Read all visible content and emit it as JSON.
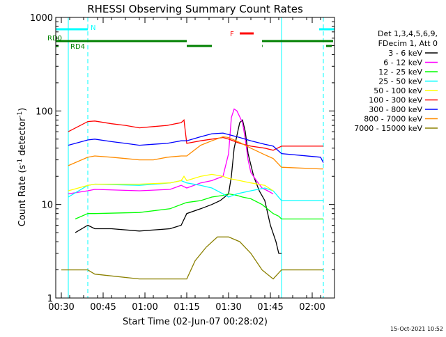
{
  "chart_data": {
    "type": "line",
    "title": "RHESSI Observing Summary Count Rates",
    "xlabel": "Start Time (02-Jun-07 00:28:02)",
    "ylabel_parts": [
      "Count Rate (s",
      "-1",
      " detector",
      "-1",
      ")"
    ],
    "x_unit": "minutes since 00:28:02",
    "xlim": [
      0,
      100
    ],
    "ylim": [
      1,
      1000
    ],
    "y_scale": "log",
    "x_ticks": [
      {
        "x": 2,
        "label": "00:30"
      },
      {
        "x": 17,
        "label": "00:45"
      },
      {
        "x": 32,
        "label": "01:00"
      },
      {
        "x": 47,
        "label": "01:15"
      },
      {
        "x": 62,
        "label": "01:30"
      },
      {
        "x": 77,
        "label": "01:45"
      },
      {
        "x": 92,
        "label": "02:00"
      }
    ],
    "y_ticks": [
      {
        "y": 1,
        "label": "1"
      },
      {
        "y": 10,
        "label": "10"
      },
      {
        "y": 100,
        "label": "100"
      },
      {
        "y": 1000,
        "label": "1000"
      }
    ],
    "legend": {
      "placement": "right",
      "header": [
        "Det 1,3,4,5,6,9,",
        "FDecim 1, Att 0"
      ]
    },
    "series": [
      {
        "name": "3 - 6 keV",
        "color": "#000000",
        "x": [
          7,
          11.5,
          14,
          20,
          30,
          41,
          45,
          47,
          52,
          56,
          59,
          62,
          63,
          64,
          66,
          67,
          68,
          69,
          71,
          73,
          75,
          77,
          79,
          80,
          81
        ],
        "y": [
          5,
          6,
          5.5,
          5.5,
          5.2,
          5.5,
          6,
          8,
          9,
          10,
          11,
          13,
          20,
          40,
          75,
          80,
          60,
          35,
          20,
          14,
          11,
          6,
          4,
          3,
          3
        ]
      },
      {
        "name": "6 - 12 keV",
        "color": "#ff00ff",
        "x": [
          4.5,
          11.5,
          14,
          30,
          41,
          45,
          47,
          52,
          56,
          60,
          62,
          63,
          64,
          65,
          67,
          68,
          69,
          70,
          72,
          74,
          76,
          78
        ],
        "y": [
          13,
          14,
          14.5,
          14,
          14.5,
          16,
          15,
          17,
          18,
          20,
          35,
          85,
          105,
          100,
          75,
          50,
          30,
          22,
          18,
          15,
          14,
          13
        ]
      },
      {
        "name": "12 - 25 keV",
        "color": "#00ff00",
        "x": [
          7,
          11.5,
          14,
          30,
          41,
          45,
          47,
          52,
          56,
          60,
          62,
          65,
          67,
          70,
          74,
          78,
          80,
          81,
          95,
          96
        ],
        "y": [
          7,
          8,
          8,
          8.2,
          9,
          10,
          10.5,
          11,
          12,
          12.5,
          13,
          12.5,
          12,
          11.5,
          10,
          8,
          7.5,
          7,
          7,
          7
        ]
      },
      {
        "name": "25 - 50 keV",
        "color": "#00ffff",
        "x": [
          4.5,
          11.5,
          14,
          30,
          41,
          45,
          47,
          52,
          56,
          60,
          62,
          65,
          70,
          75,
          78,
          81,
          95,
          96
        ],
        "y": [
          12,
          16,
          16.5,
          16,
          17,
          18,
          17,
          16,
          15,
          13,
          12,
          13,
          14,
          15,
          14,
          11,
          11,
          11
        ]
      },
      {
        "name": "50 - 100 keV",
        "color": "#ffff00",
        "x": [
          4.5,
          11.5,
          14,
          30,
          41,
          45,
          46,
          47,
          52,
          56,
          60,
          62,
          66,
          70,
          75,
          78
        ],
        "y": [
          14,
          16,
          16.5,
          16.5,
          17,
          18,
          20,
          18,
          20,
          21,
          20,
          19,
          18,
          17,
          16,
          14
        ]
      },
      {
        "name": "100 - 300 keV",
        "color": "#ff0000",
        "x": [
          4.5,
          11.5,
          14,
          20,
          25,
          30,
          35,
          40,
          45,
          46,
          47,
          52,
          56,
          60,
          62,
          66,
          70,
          75,
          78,
          81,
          95,
          96
        ],
        "y": [
          60,
          77,
          78,
          73,
          70,
          66,
          68,
          70,
          75,
          80,
          45,
          48,
          50,
          52,
          50,
          45,
          42,
          40,
          38,
          42,
          42,
          42
        ]
      },
      {
        "name": "300 - 800 keV",
        "color": "#0000ff",
        "x": [
          4.5,
          11.5,
          14,
          20,
          25,
          30,
          35,
          40,
          45,
          47,
          52,
          56,
          60,
          62,
          66,
          70,
          75,
          78,
          81,
          95,
          96
        ],
        "y": [
          43,
          49,
          50,
          47,
          45,
          43,
          44,
          45,
          48,
          48,
          53,
          57,
          58,
          56,
          52,
          48,
          44,
          42,
          35,
          32,
          28
        ]
      },
      {
        "name": "800 - 7000 keV",
        "color": "#ff8c00",
        "x": [
          4.5,
          11.5,
          14,
          20,
          25,
          30,
          35,
          40,
          45,
          47,
          52,
          56,
          60,
          62,
          66,
          70,
          75,
          78,
          81,
          95,
          96
        ],
        "y": [
          26,
          32,
          33,
          32,
          31,
          30,
          30,
          32,
          33,
          33,
          43,
          48,
          53,
          52,
          46,
          40,
          34,
          31,
          25,
          24,
          24
        ]
      },
      {
        "name": "7000 - 15000 keV",
        "color": "#8b8000",
        "x": [
          2,
          6,
          11.5,
          14,
          30,
          47,
          50,
          54,
          58,
          62,
          66,
          70,
          74,
          78,
          81,
          95,
          96
        ],
        "y": [
          2,
          2,
          2,
          1.8,
          1.6,
          1.6,
          2.5,
          3.5,
          4.5,
          4.5,
          4,
          3,
          2,
          1.6,
          2,
          2,
          2
        ]
      }
    ],
    "status_bars": [
      {
        "label": "N",
        "color": "#00ffff",
        "segments": [
          [
            0,
            11.5
          ],
          [
            94.5,
            100
          ]
        ]
      },
      {
        "label": "F",
        "color": "#ff0000",
        "segments": [
          [
            66,
            71
          ]
        ]
      },
      {
        "label": "RD0",
        "color": "#008000",
        "segments": [
          [
            0,
            47
          ],
          [
            74,
            99.5
          ]
        ]
      },
      {
        "label": "RD4",
        "color": "#008000",
        "segments": [
          [
            0,
            1
          ],
          [
            47,
            56
          ],
          [
            74,
            74.2
          ],
          [
            97,
            99
          ]
        ]
      }
    ],
    "vertical_markers": [
      {
        "x": 4.5,
        "color": "#00ffff",
        "style": "solid"
      },
      {
        "x": 11.5,
        "color": "#00ffff",
        "style": "dashed"
      },
      {
        "x": 81,
        "color": "#00ffff",
        "style": "solid"
      },
      {
        "x": 96,
        "color": "#00ffff",
        "style": "dashed"
      }
    ]
  },
  "footer": {
    "timestamp": "15-Oct-2021 10:52"
  }
}
